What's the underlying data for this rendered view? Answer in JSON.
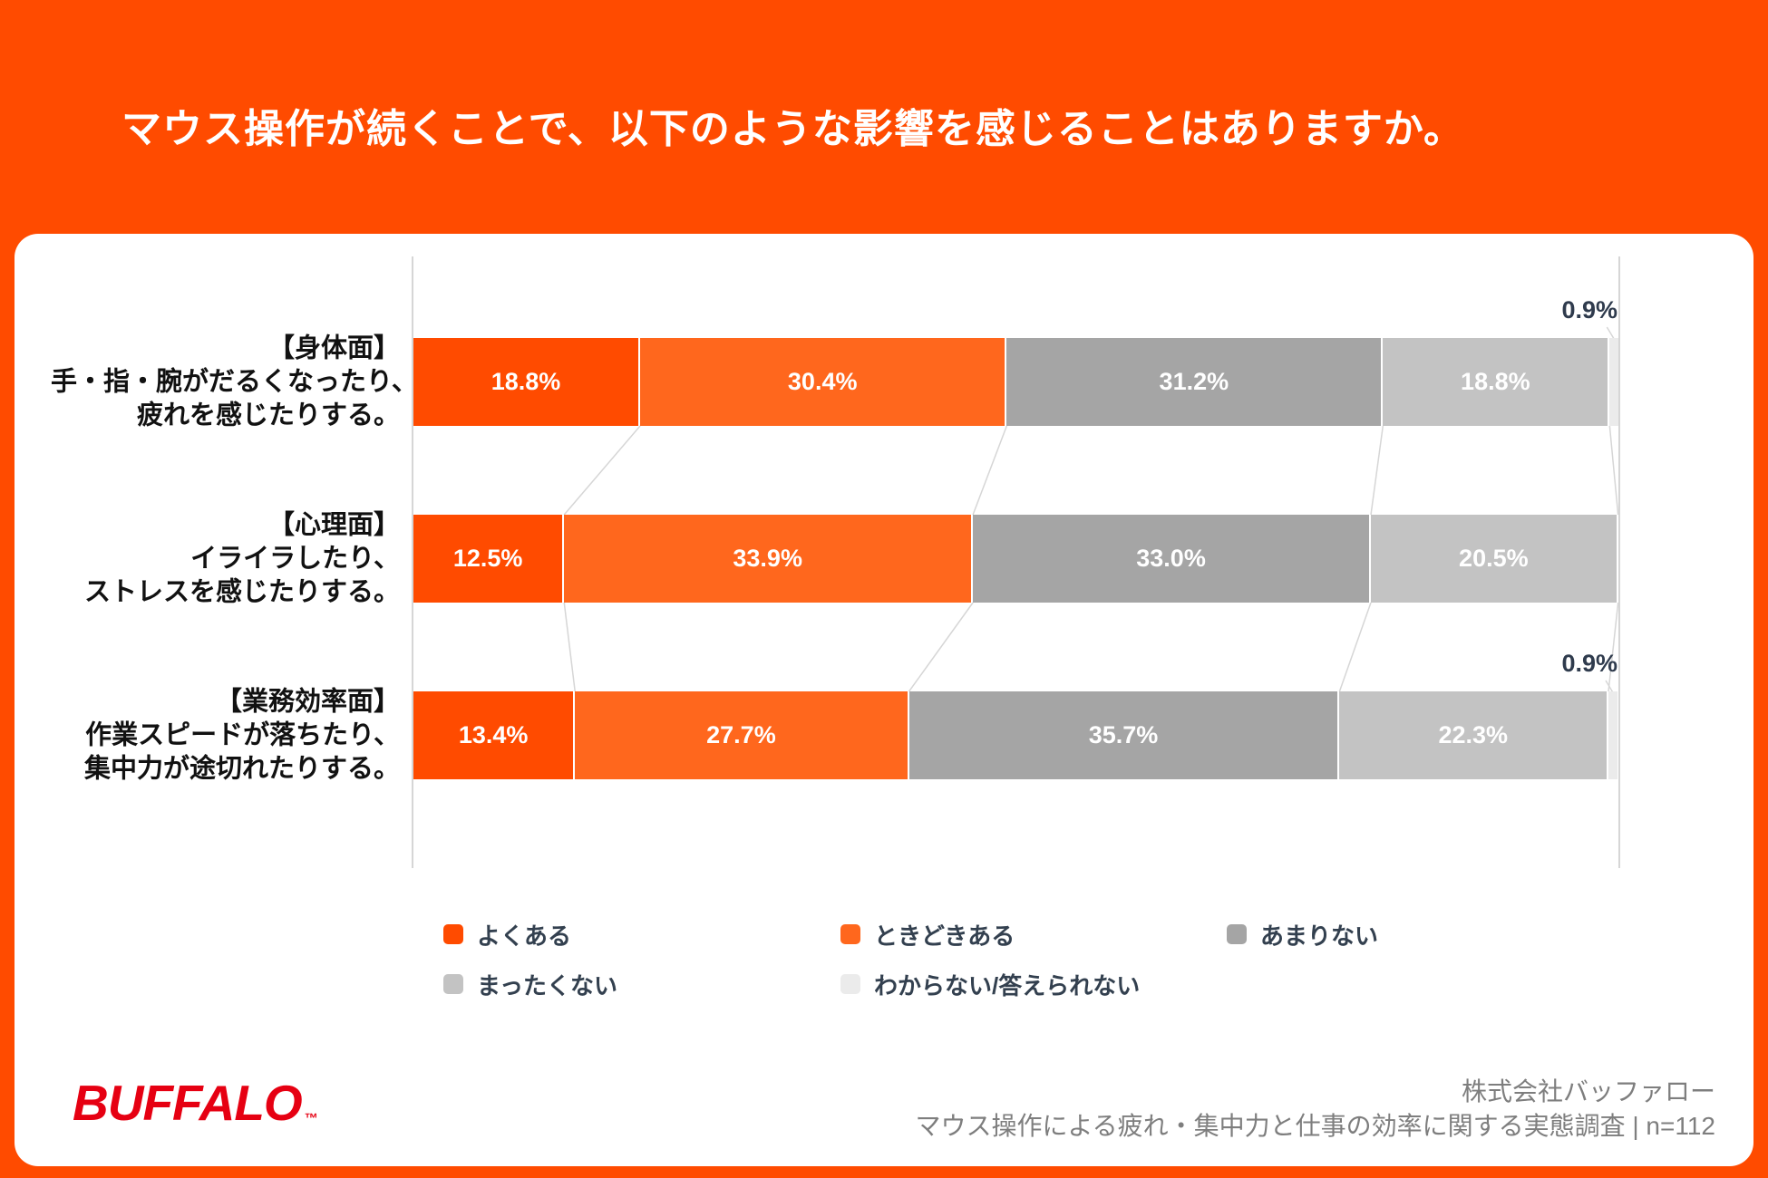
{
  "title": "マウス操作が続くことで、以下のような影響を感じることはありますか。",
  "colors": {
    "background_orange": "#FF4B00",
    "card_white": "#FFFFFF",
    "outside_label_navy": "#2F3B4D",
    "legend_text_navy": "#33404F",
    "category_text": "#111111",
    "grid_line": "#D6D6D6",
    "source_text_gray": "#7E7E7E",
    "logo_red": "#E60012"
  },
  "chart_data": {
    "type": "bar",
    "variant": "horizontal-stacked-100pct",
    "unit": "%",
    "xlim": [
      0,
      100
    ],
    "grid": "vertical-edge-lines-only",
    "legend_position": "bottom",
    "categories": [
      [
        "【身体面】",
        "手・指・腕がだるくなったり、",
        "疲れを感じたりする。"
      ],
      [
        "【心理面】",
        "イライラしたり、",
        "ストレスを感じたりする。"
      ],
      [
        "【業務効率面】",
        "作業スピードが落ちたり、",
        "集中力が途切れたりする。"
      ]
    ],
    "series": [
      {
        "name": "よくある",
        "color": "#FF4B00",
        "values": [
          18.8,
          12.5,
          13.4
        ],
        "labels": [
          "18.8%",
          "12.5%",
          "13.4%"
        ]
      },
      {
        "name": "ときどきある",
        "color": "#FF671D",
        "values": [
          30.4,
          33.9,
          27.7
        ],
        "labels": [
          "30.4%",
          "33.9%",
          "27.7%"
        ]
      },
      {
        "name": "あまりない",
        "color": "#A5A5A5",
        "values": [
          31.2,
          33.0,
          35.7
        ],
        "labels": [
          "31.2%",
          "33.0%",
          "35.7%"
        ]
      },
      {
        "name": "まったくない",
        "color": "#C3C3C3",
        "values": [
          18.8,
          20.5,
          22.3
        ],
        "labels": [
          "18.8%",
          "20.5%",
          "22.3%"
        ]
      },
      {
        "name": "わからない/答えられない",
        "color": "#EBEBEB",
        "values": [
          0.9,
          null,
          0.9
        ],
        "labels": [
          "0.9%",
          null,
          "0.9%"
        ],
        "label_outside": true
      }
    ]
  },
  "footer": {
    "logo_text": "BUFFALO",
    "logo_tm": "™",
    "company": "株式会社バッファロー",
    "survey": "マウス操作による疲れ・集中力と仕事の効率に関する実態調査 | n=112"
  }
}
